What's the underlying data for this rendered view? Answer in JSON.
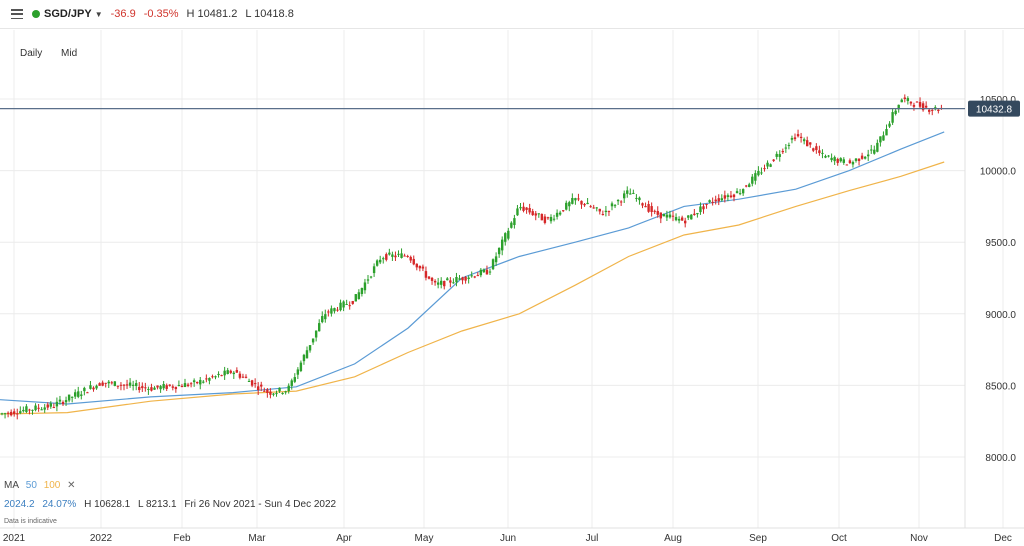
{
  "header": {
    "pair": "SGD/JPY",
    "change": "-36.9",
    "change_pct": "-0.35%",
    "high": "H 10481.2",
    "low": "L 10418.8",
    "status_color": "#2ca02c"
  },
  "period": {
    "interval": "Daily",
    "price_type": "Mid"
  },
  "indicator": {
    "label": "MA",
    "ma_short": "50",
    "ma_long": "100",
    "close_glyph": "✕",
    "ma_short_value": "2024.2",
    "ma_long_value": "24.07%",
    "range_high": "H 10628.1",
    "range_low": "L 8213.1",
    "date_range": "Fri 26 Nov 2021 - Sun 4 Dec 2022",
    "note": "Data is indicative"
  },
  "chart_data": {
    "type": "line",
    "current_price": "10432.8",
    "y_ticks": [
      "10500.0",
      "10000.0",
      "9500.0",
      "9000.0",
      "8500.0",
      "8000.0"
    ],
    "y_tick_values": [
      10500,
      10000,
      9500,
      9000,
      8500,
      8000
    ],
    "ylim": [
      7900,
      10750
    ],
    "x_ticks": [
      "2021",
      "2022",
      "Feb",
      "Mar",
      "Apr",
      "May",
      "Jun",
      "Jul",
      "Aug",
      "Sep",
      "Oct",
      "Nov",
      "Dec"
    ],
    "series": [
      {
        "name": "Price",
        "color_up": "#2ca02c",
        "color_down": "#d62728",
        "x": [
          "2021-11-26",
          "2021-12-15",
          "2022-01-01",
          "2022-01-20",
          "2022-02-05",
          "2022-02-20",
          "2022-03-05",
          "2022-03-12",
          "2022-03-25",
          "2022-04-05",
          "2022-04-15",
          "2022-04-25",
          "2022-05-05",
          "2022-05-15",
          "2022-05-25",
          "2022-06-05",
          "2022-06-15",
          "2022-06-25",
          "2022-07-05",
          "2022-07-15",
          "2022-07-25",
          "2022-08-05",
          "2022-08-15",
          "2022-08-25",
          "2022-09-05",
          "2022-09-15",
          "2022-09-25",
          "2022-10-05",
          "2022-10-15",
          "2022-10-25",
          "2022-11-05",
          "2022-11-10"
        ],
        "values": [
          8300,
          8360,
          8520,
          8480,
          8510,
          8600,
          8450,
          8470,
          9000,
          9100,
          9400,
          9410,
          9200,
          9250,
          9300,
          9750,
          9650,
          9800,
          9700,
          9850,
          9700,
          9650,
          9790,
          9850,
          10050,
          10250,
          10100,
          10050,
          10150,
          10500,
          10430,
          10433
        ]
      },
      {
        "name": "MA 50",
        "color": "#5b9bd5",
        "x": [
          "2021-11-26",
          "2021-12-20",
          "2022-01-20",
          "2022-02-20",
          "2022-03-15",
          "2022-04-05",
          "2022-04-25",
          "2022-05-15",
          "2022-06-05",
          "2022-06-25",
          "2022-07-15",
          "2022-08-05",
          "2022-08-25",
          "2022-09-15",
          "2022-10-05",
          "2022-10-25",
          "2022-11-10"
        ],
        "values": [
          8400,
          8370,
          8420,
          8450,
          8490,
          8650,
          8900,
          9250,
          9400,
          9500,
          9600,
          9750,
          9800,
          9870,
          10000,
          10150,
          10270
        ]
      },
      {
        "name": "MA 100",
        "color": "#f0b44a",
        "x": [
          "2021-11-26",
          "2021-12-20",
          "2022-01-20",
          "2022-02-20",
          "2022-03-15",
          "2022-04-05",
          "2022-04-25",
          "2022-05-15",
          "2022-06-05",
          "2022-06-25",
          "2022-07-15",
          "2022-08-05",
          "2022-08-25",
          "2022-09-15",
          "2022-10-05",
          "2022-10-25",
          "2022-11-10"
        ],
        "values": [
          8300,
          8310,
          8390,
          8440,
          8460,
          8560,
          8730,
          8880,
          9000,
          9200,
          9400,
          9550,
          9620,
          9750,
          9860,
          9960,
          10060
        ]
      }
    ],
    "grid": true,
    "legend": "bottom-left"
  }
}
